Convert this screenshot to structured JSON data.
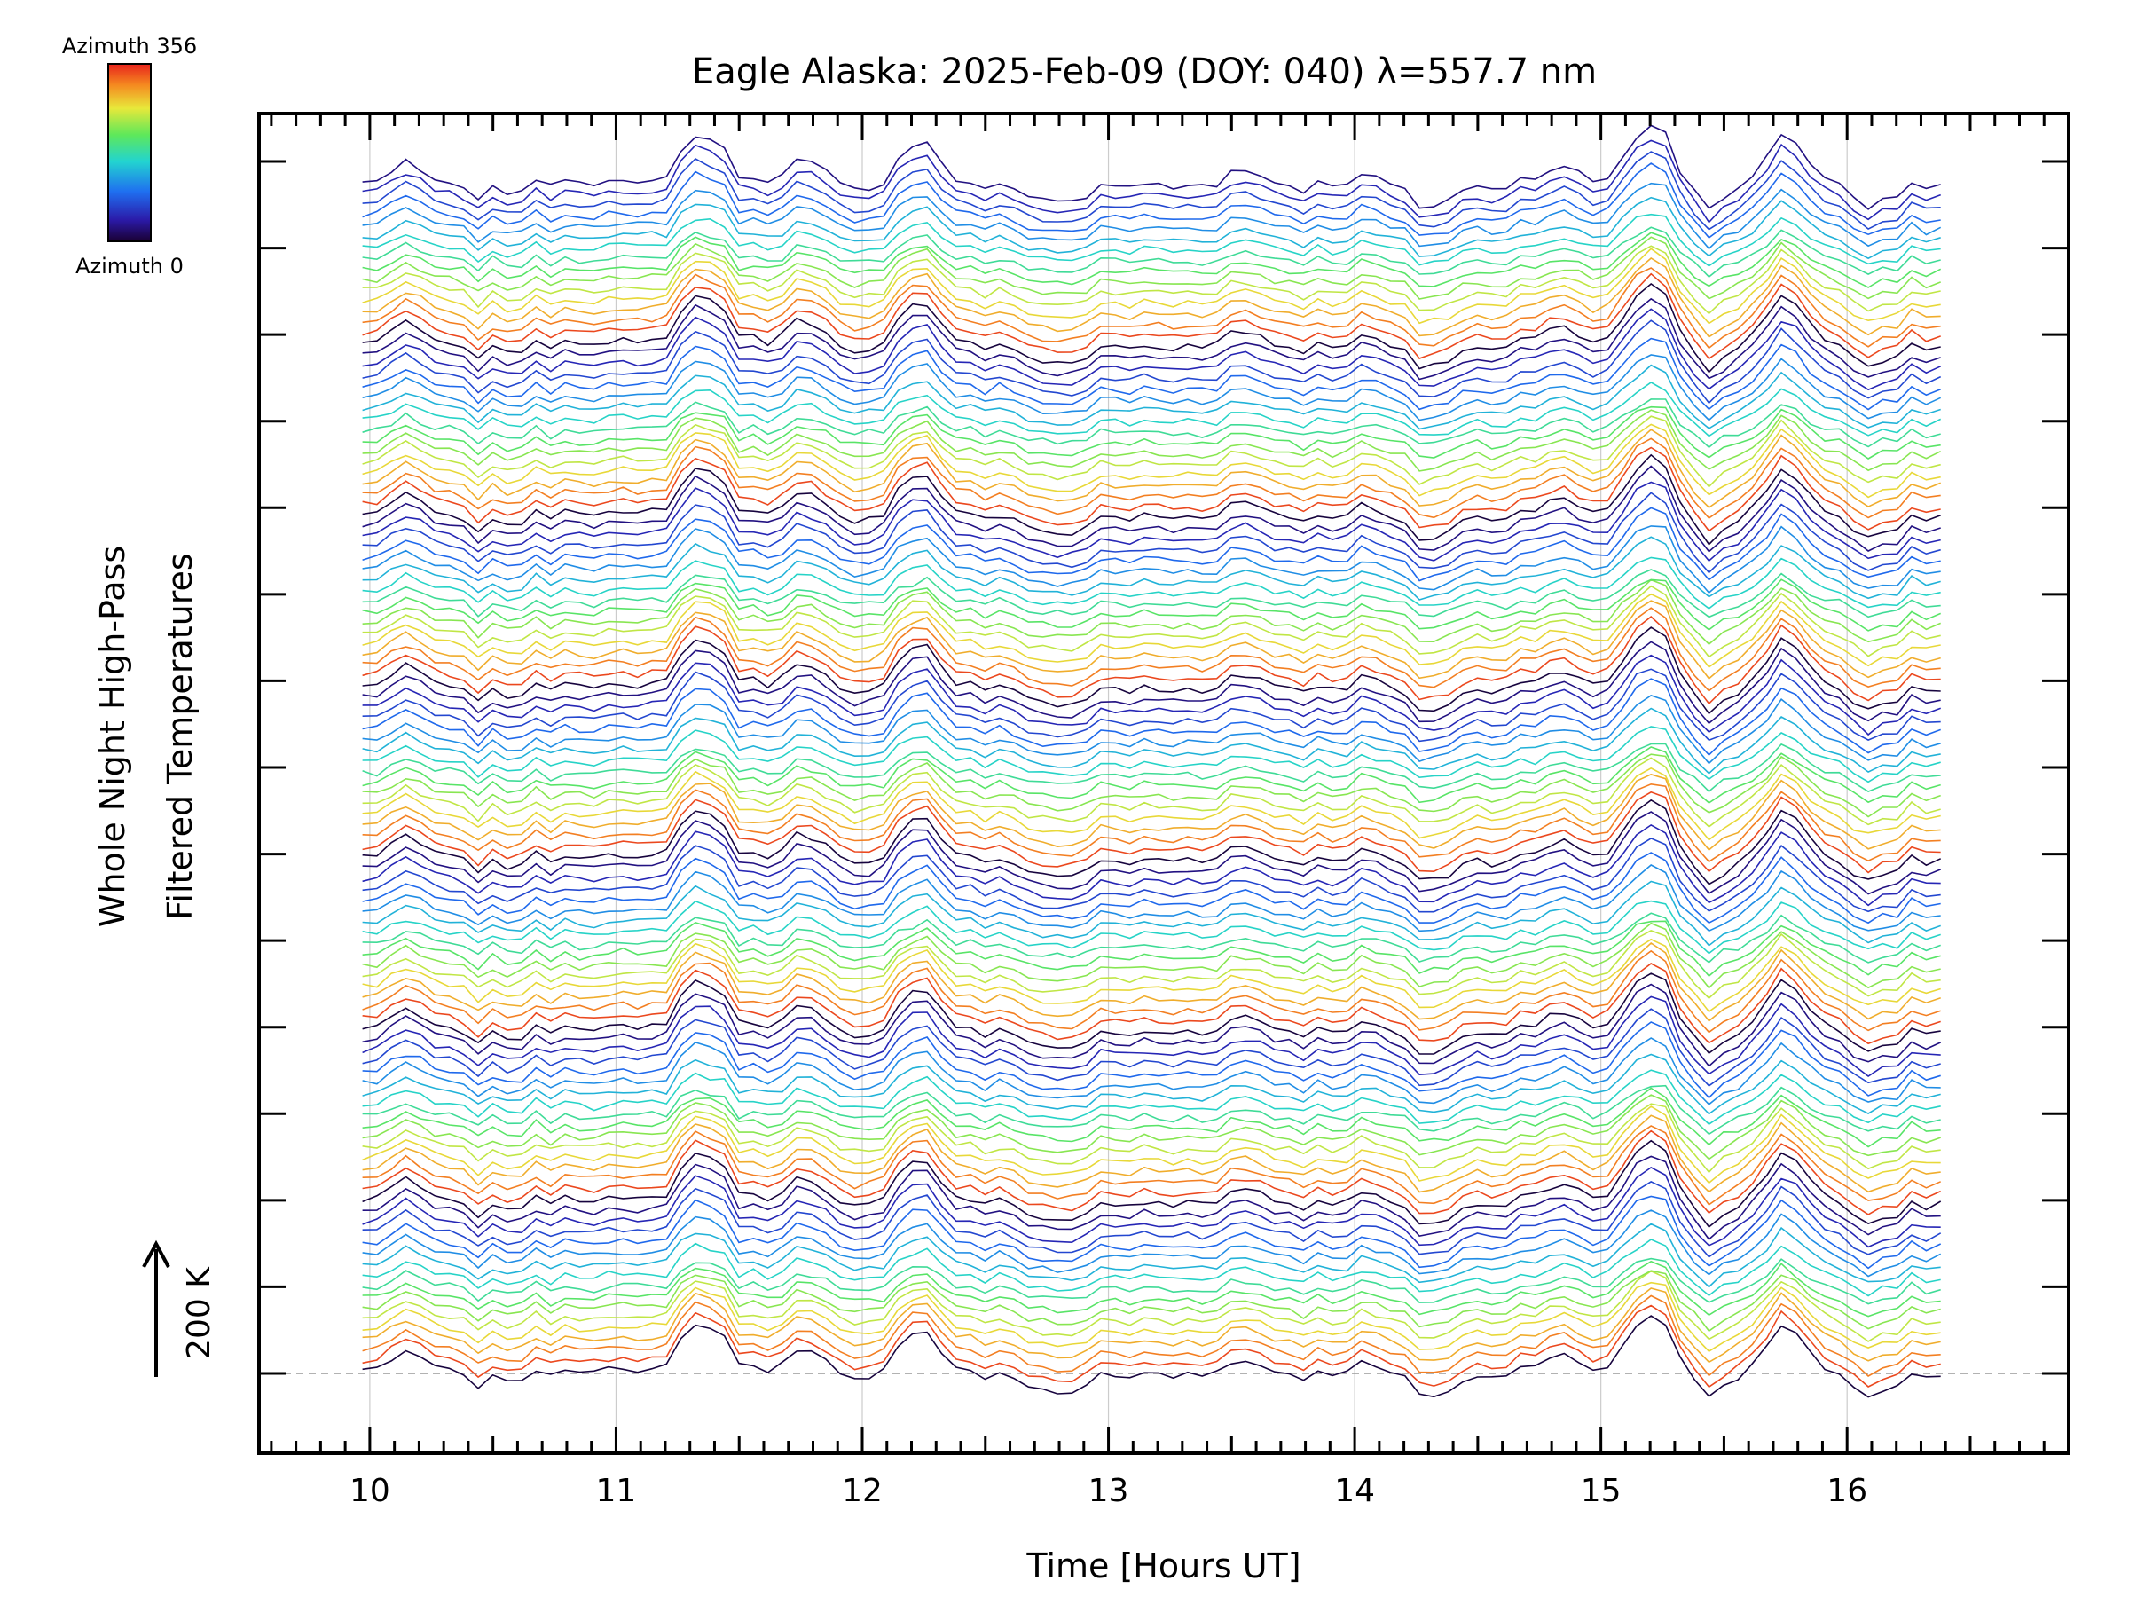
{
  "chart_data": {
    "type": "line",
    "title": "Eagle Alaska: 2025-Feb-09 (DOY: 040) λ=557.7 nm",
    "xlabel": "Time [Hours UT]",
    "ylabel_line1": "Whole Night High-Pass",
    "ylabel_line2": "Filtered Temperatures",
    "xlim": [
      9.55,
      16.9
    ],
    "x_ticks": [
      10,
      11,
      12,
      13,
      14,
      15,
      16
    ],
    "x_tick_labels": [
      "10",
      "11",
      "12",
      "13",
      "14",
      "15",
      "16"
    ],
    "y_ticks_count": 15,
    "x_start": 9.97,
    "x_end": 16.38,
    "grid": "vertical-only",
    "scale_bar_label": "200 K",
    "colorbar": {
      "top_label": "Azimuth 356",
      "bottom_label": "Azimuth 0",
      "colormap": "rainbow"
    },
    "stack": {
      "groups": 7,
      "traces_per_group": 16,
      "azimuth_min": 0,
      "azimuth_max": 356
    },
    "features": [
      {
        "t": 10.15,
        "amp": 40
      },
      {
        "t": 10.45,
        "amp": -15
      },
      {
        "t": 10.85,
        "amp": 20
      },
      {
        "t": 11.35,
        "amp": 110
      },
      {
        "t": 11.75,
        "amp": 50
      },
      {
        "t": 12.0,
        "amp": -20
      },
      {
        "t": 12.22,
        "amp": 95
      },
      {
        "t": 12.8,
        "amp": -35
      },
      {
        "t": 13.55,
        "amp": 30
      },
      {
        "t": 14.05,
        "amp": 20
      },
      {
        "t": 14.3,
        "amp": -40
      },
      {
        "t": 14.8,
        "amp": 40
      },
      {
        "t": 15.2,
        "amp": 130
      },
      {
        "t": 15.45,
        "amp": -40
      },
      {
        "t": 15.75,
        "amp": 100
      },
      {
        "t": 16.1,
        "amp": -30
      }
    ],
    "colors": {
      "axis": "#000000",
      "grid": "#cccccc",
      "baseline": "#999999",
      "background": "#ffffff"
    }
  }
}
